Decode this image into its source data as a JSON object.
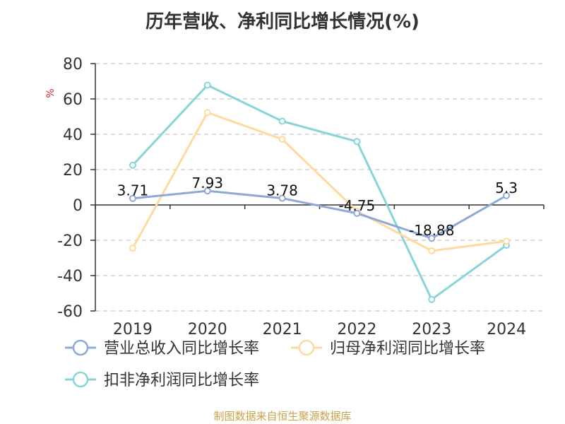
{
  "chart_data": {
    "type": "line",
    "title": "历年营收、净利同比增长情况(%)",
    "ylabel": "%",
    "categories": [
      "2019",
      "2020",
      "2021",
      "2022",
      "2023",
      "2024"
    ],
    "ylim": [
      -60,
      80
    ],
    "yticks": [
      80,
      60,
      40,
      20,
      0,
      -20,
      -40,
      -60
    ],
    "grid": true,
    "legend_position": "bottom-left",
    "series": [
      {
        "name": "营业总收入同比增长率",
        "color": "#8fa9d6",
        "values": [
          3.71,
          7.93,
          3.78,
          -4.75,
          -18.88,
          5.3
        ],
        "labels": [
          "3.71",
          "7.93",
          "3.78",
          "-4.75",
          "-18.88",
          "5.3"
        ]
      },
      {
        "name": "归母净利润同比增长率",
        "color": "#fddba0",
        "values": [
          -24.5,
          52.3,
          37.2,
          -3.5,
          -26.0,
          -20.5
        ]
      },
      {
        "name": "扣非净利润同比增长率",
        "color": "#86d5d8",
        "values": [
          22.5,
          67.8,
          47.4,
          35.9,
          -53.5,
          -22.8
        ]
      }
    ]
  },
  "source": "制图数据来自恒生聚源数据库"
}
